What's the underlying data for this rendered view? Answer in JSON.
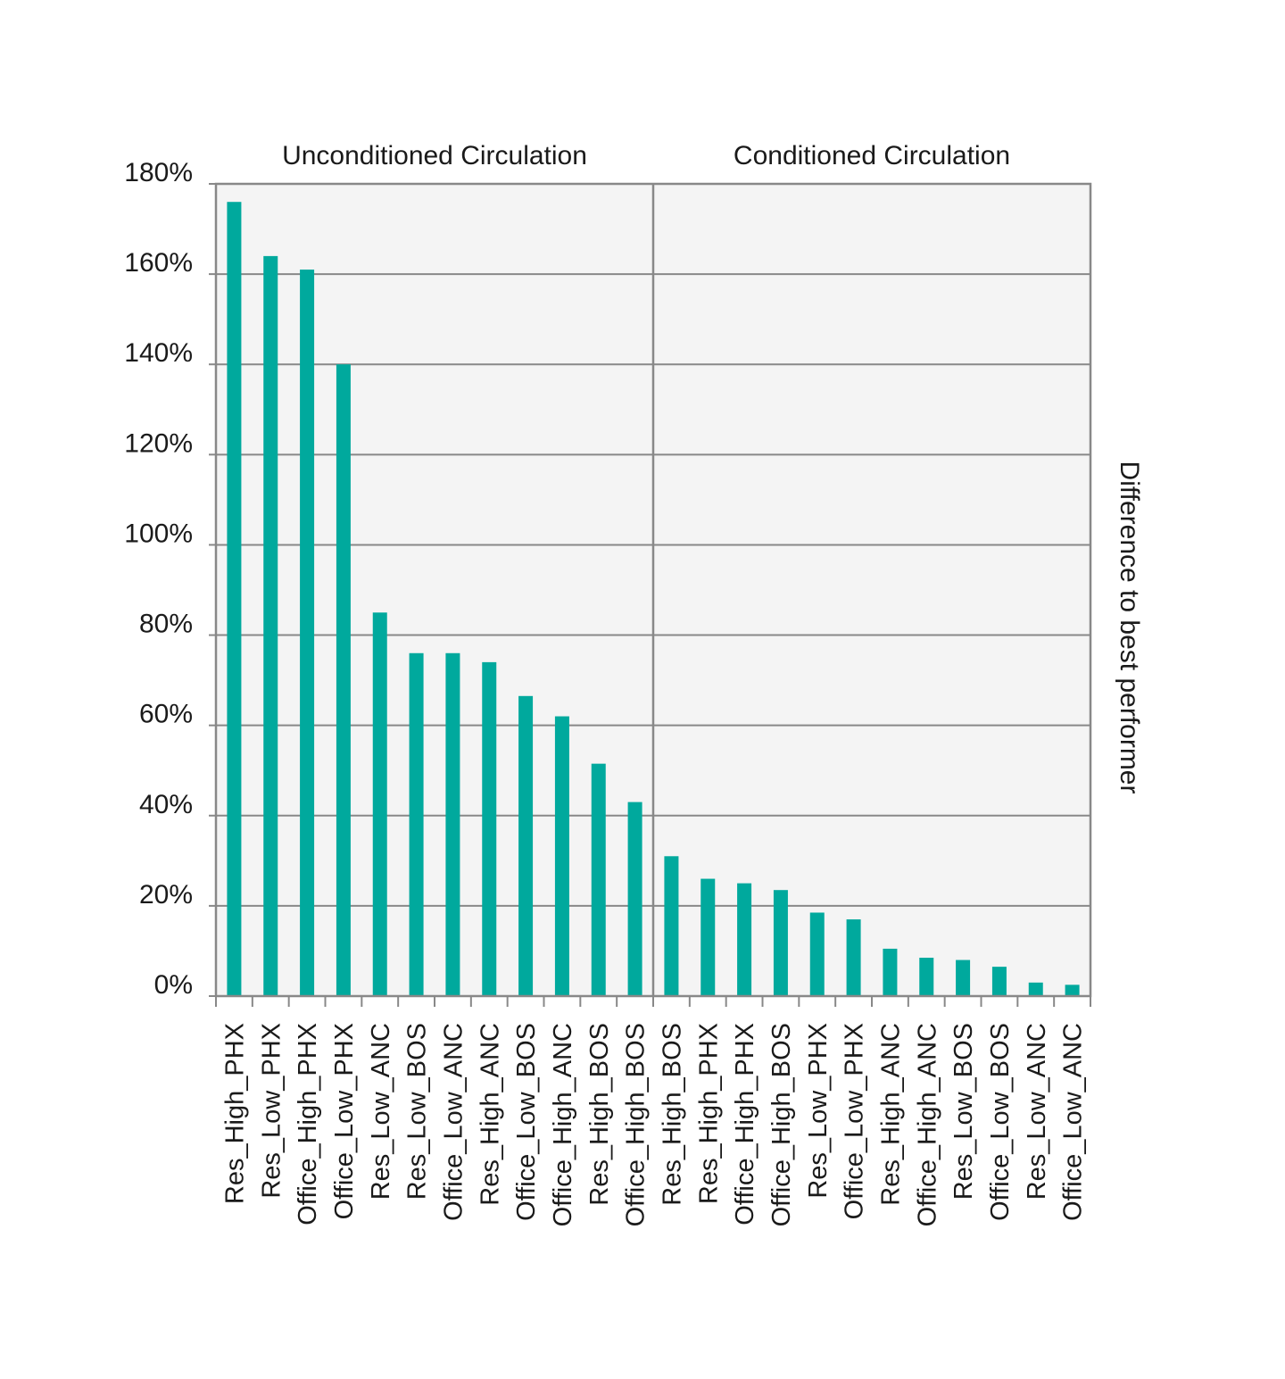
{
  "chart_data": {
    "type": "bar",
    "ylabel": "Difference to best performer",
    "y_ticks": [
      "0%",
      "20%",
      "40%",
      "60%",
      "80%",
      "100%",
      "120%",
      "140%",
      "160%",
      "180%"
    ],
    "ylim": [
      0,
      180
    ],
    "grid": true,
    "groups": [
      {
        "name": "Unconditioned Circulation",
        "categories": [
          "Res_High_PHX",
          "Res_Low_PHX",
          "Office_High_PHX",
          "Office_Low_PHX",
          "Res_Low_ANC",
          "Res_Low_BOS",
          "Office_Low_ANC",
          "Res_High_ANC",
          "Office_Low_BOS",
          "Office_High_ANC",
          "Res_High_BOS",
          "Office_High_BOS"
        ],
        "values": [
          176,
          164,
          161,
          140,
          85,
          76,
          76,
          74,
          66.5,
          62,
          51.5,
          43
        ]
      },
      {
        "name": "Conditioned Circulation",
        "categories": [
          "Res_High_BOS",
          "Res_High_PHX",
          "Office_High_PHX",
          "Office_High_BOS",
          "Res_Low_PHX",
          "Office_Low_PHX",
          "Res_High_ANC",
          "Office_High_ANC",
          "Res_Low_BOS",
          "Office_Low_BOS",
          "Res_Low_ANC",
          "Office_Low_ANC"
        ],
        "values": [
          31,
          26,
          25,
          23.5,
          18.5,
          17,
          10.5,
          8.5,
          8,
          6.5,
          3,
          2.5
        ]
      }
    ],
    "colors": {
      "bar": "#00a99d",
      "plot_background": "#f4f4f4",
      "grid": "#888888"
    }
  }
}
